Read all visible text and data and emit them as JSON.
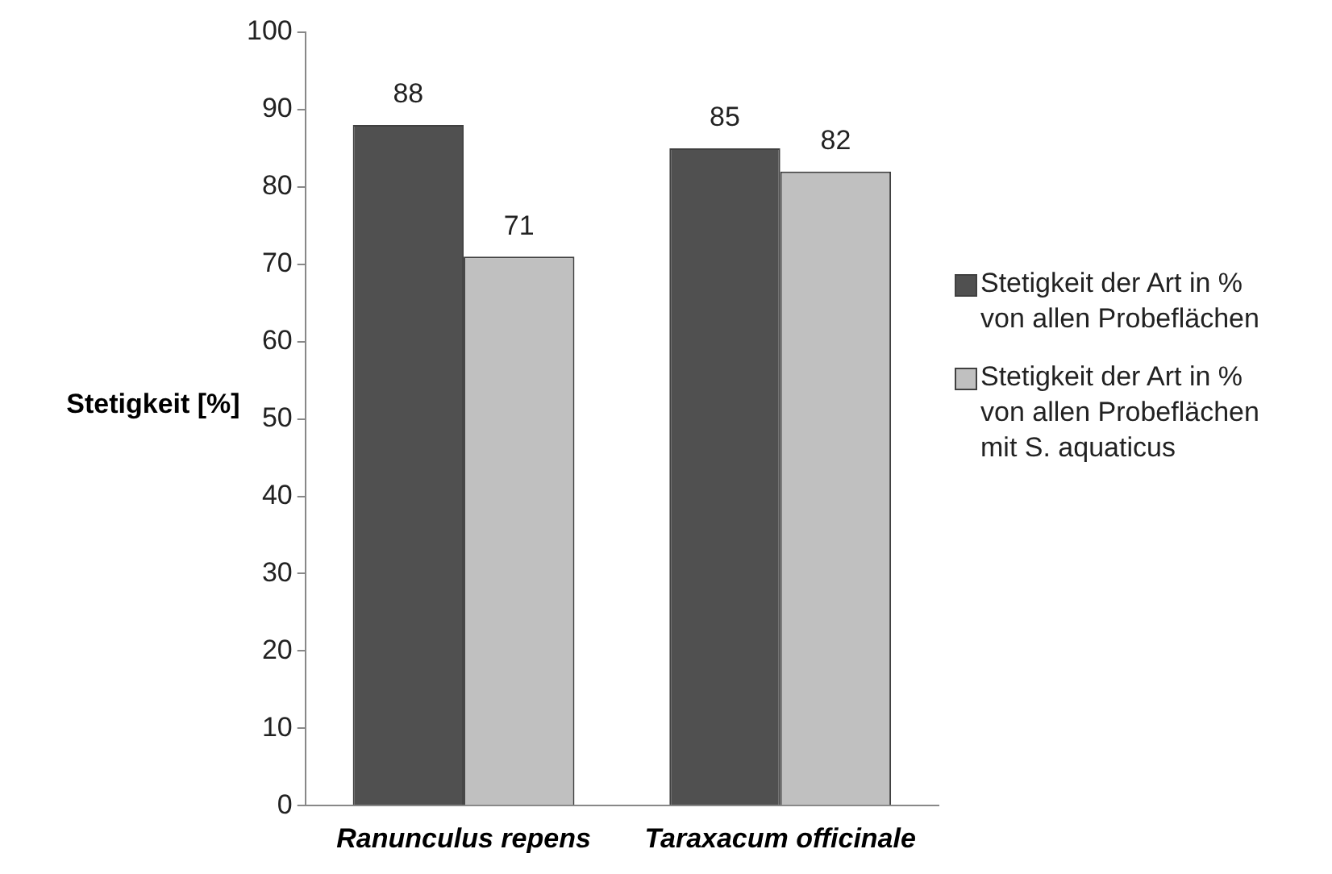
{
  "chart_data": {
    "type": "bar",
    "ylabel": "Stetigkeit [%]",
    "categories": [
      "Ranunculus repens",
      "Taraxacum officinale"
    ],
    "series": [
      {
        "name": "Stetigkeit der Art in % von allen Probeflächen",
        "color": "#505050",
        "values": [
          88,
          85
        ]
      },
      {
        "name": "Stetigkeit der Art in % von allen Probeflächen mit S. aquaticus",
        "color": "#c0c0c0",
        "values": [
          71,
          82
        ]
      }
    ],
    "ylim": [
      0,
      100
    ],
    "yticks": [
      0,
      10,
      20,
      30,
      40,
      50,
      60,
      70,
      80,
      90,
      100
    ],
    "grid": false,
    "legend": "right",
    "data_labels": true
  }
}
